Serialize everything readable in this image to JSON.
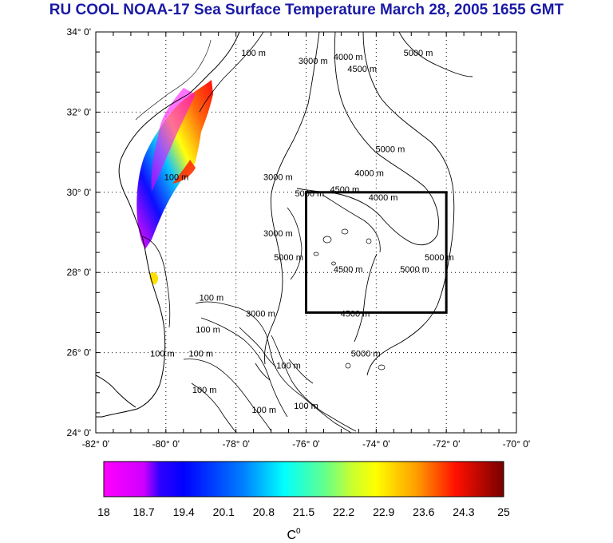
{
  "title": "RU COOL  NOAA-17 Sea Surface Temperature March 28, 2005 1655 GMT",
  "map": {
    "lon_ticks": [
      "-82° 0'",
      "-80° 0'",
      "-78° 0'",
      "-76° 0'",
      "-74° 0'",
      "-72° 0'",
      "-70° 0'"
    ],
    "lat_ticks": [
      "34° 0'",
      "32° 0'",
      "30° 0'",
      "28° 0'",
      "26° 0'",
      "24° 0'"
    ],
    "lon_range": [
      -82,
      -70
    ],
    "lat_range": [
      24,
      34
    ],
    "grid": "dotted",
    "study_box": {
      "lon": [
        -76,
        -72
      ],
      "lat": [
        27,
        30
      ]
    },
    "contour_labels": [
      {
        "text": "100 m",
        "lon": -77.5,
        "lat": 33.4
      },
      {
        "text": "3000 m",
        "lon": -75.8,
        "lat": 33.2
      },
      {
        "text": "4000 m",
        "lon": -74.8,
        "lat": 33.3
      },
      {
        "text": "4500 m",
        "lon": -74.4,
        "lat": 33.0
      },
      {
        "text": "5000 m",
        "lon": -72.8,
        "lat": 33.4
      },
      {
        "text": "100 m",
        "lon": -79.7,
        "lat": 30.3
      },
      {
        "text": "3000 m",
        "lon": -76.8,
        "lat": 30.3
      },
      {
        "text": "5000 m",
        "lon": -75.9,
        "lat": 29.9
      },
      {
        "text": "4500 m",
        "lon": -74.9,
        "lat": 30.0
      },
      {
        "text": "5000 m",
        "lon": -73.6,
        "lat": 31.0
      },
      {
        "text": "4000 m",
        "lon": -74.2,
        "lat": 30.4
      },
      {
        "text": "4000 m",
        "lon": -73.8,
        "lat": 29.8
      },
      {
        "text": "3000 m",
        "lon": -76.8,
        "lat": 28.9
      },
      {
        "text": "5000 m",
        "lon": -76.5,
        "lat": 28.3
      },
      {
        "text": "4500 m",
        "lon": -74.8,
        "lat": 28.0
      },
      {
        "text": "5000 m",
        "lon": -72.9,
        "lat": 28.0
      },
      {
        "text": "5000 m",
        "lon": -72.2,
        "lat": 28.3
      },
      {
        "text": "4500 m",
        "lon": -74.6,
        "lat": 26.9
      },
      {
        "text": "3000 m",
        "lon": -77.3,
        "lat": 26.9
      },
      {
        "text": "5000 m",
        "lon": -74.3,
        "lat": 25.9
      },
      {
        "text": "100 m",
        "lon": -78.7,
        "lat": 27.3
      },
      {
        "text": "100 m",
        "lon": -78.8,
        "lat": 26.5
      },
      {
        "text": "100 m",
        "lon": -79.0,
        "lat": 25.9
      },
      {
        "text": "100 m",
        "lon": -80.1,
        "lat": 25.9
      },
      {
        "text": "100 m",
        "lon": -78.9,
        "lat": 25.0
      },
      {
        "text": "100 m",
        "lon": -77.2,
        "lat": 24.5
      },
      {
        "text": "100 m",
        "lon": -76.0,
        "lat": 24.6
      },
      {
        "text": "100 m",
        "lon": -76.5,
        "lat": 25.6
      }
    ]
  },
  "colorbar": {
    "labels": [
      "18",
      "18.7",
      "19.4",
      "20.1",
      "20.8",
      "21.5",
      "22.2",
      "22.9",
      "23.6",
      "24.3",
      "25"
    ],
    "unit": "C",
    "unit_sup": "0",
    "colors": [
      "#ff00ff",
      "#bf00ff",
      "#0000ff",
      "#0070ff",
      "#00dfff",
      "#50ffa0",
      "#c0ff40",
      "#ffff00",
      "#ffa000",
      "#ff2000",
      "#800000"
    ]
  }
}
